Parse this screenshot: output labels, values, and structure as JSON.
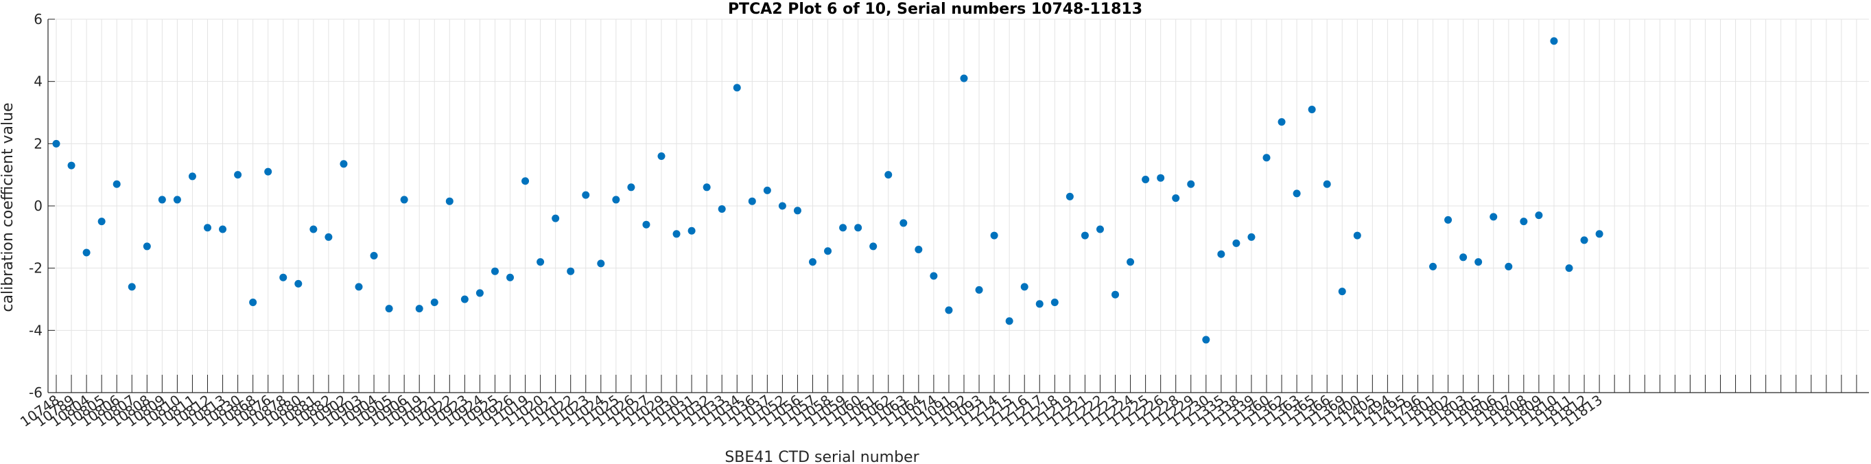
{
  "chart_data": {
    "type": "scatter",
    "title": "PTCA2 Plot 6 of 10, Serial numbers 10748-11813",
    "xlabel": "SBE41 CTD serial number",
    "ylabel": "calibration coefficient value",
    "ylim": [
      -6,
      6
    ],
    "yticks": [
      "-6",
      "-4",
      "-2",
      "0",
      "2",
      "4",
      "6"
    ],
    "grid": true,
    "marker_color": "#0072BD",
    "categories": [
      "10748",
      "10789",
      "10804",
      "10805",
      "10806",
      "10807",
      "10808",
      "10809",
      "10810",
      "10811",
      "10812",
      "10813",
      "10830",
      "10868",
      "10876",
      "10878",
      "10880",
      "10881",
      "10882",
      "10902",
      "10903",
      "10904",
      "10905",
      "10906",
      "10919",
      "10921",
      "10922",
      "10923",
      "10924",
      "10925",
      "10926",
      "11019",
      "11020",
      "11021",
      "11022",
      "11023",
      "11024",
      "11025",
      "11026",
      "11027",
      "11029",
      "11030",
      "11031",
      "11032",
      "11033",
      "11034",
      "11036",
      "11037",
      "11052",
      "11056",
      "11057",
      "11058",
      "11059",
      "11060",
      "11061",
      "11062",
      "11063",
      "11064",
      "11074",
      "11091",
      "11092",
      "11093",
      "11214",
      "11215",
      "11216",
      "11217",
      "11218",
      "11219",
      "11221",
      "11222",
      "11223",
      "11224",
      "11225",
      "11226",
      "11228",
      "11229",
      "11230",
      "11335",
      "11338",
      "11339",
      "11360",
      "11362",
      "11363",
      "11365",
      "11366",
      "11369",
      "11400",
      "11405",
      "11494",
      "11495",
      "11796",
      "11801",
      "11802",
      "11803",
      "11805",
      "11806",
      "11807",
      "11808",
      "11809",
      "11810",
      "11811",
      "11812",
      "11813"
    ],
    "x_extra_ticks": 19,
    "values": [
      2.0,
      1.3,
      -1.5,
      -0.5,
      0.7,
      -2.6,
      -1.3,
      0.2,
      0.2,
      0.95,
      -0.7,
      -0.75,
      1.0,
      -3.1,
      1.1,
      -2.3,
      -2.5,
      -0.75,
      -1.0,
      1.35,
      -2.6,
      -1.6,
      -3.3,
      0.2,
      -3.3,
      -3.1,
      0.15,
      -3.0,
      -2.8,
      -2.1,
      -2.3,
      0.8,
      -1.8,
      -0.4,
      -2.1,
      0.35,
      -1.85,
      0.2,
      0.6,
      -0.6,
      1.6,
      -0.9,
      -0.8,
      0.6,
      -0.1,
      3.8,
      0.15,
      0.5,
      0.0,
      -0.15,
      -1.8,
      -1.45,
      -0.7,
      -0.7,
      -1.3,
      1.0,
      -0.55,
      -1.4,
      -2.25,
      -3.35,
      4.1,
      -2.7,
      -0.95,
      -3.7,
      -2.6,
      -3.15,
      -3.1,
      0.3,
      -0.95,
      -0.75,
      -2.85,
      -1.8,
      0.85,
      0.9,
      0.25,
      0.7,
      -4.3,
      -1.55,
      -1.2,
      -1.0,
      1.55,
      2.7,
      0.4,
      3.1,
      0.7,
      -2.75,
      -0.95,
      null,
      null,
      null,
      null,
      -1.95,
      -0.45,
      -1.65,
      -1.8,
      -0.35,
      -1.95,
      -0.5,
      -0.3,
      5.3,
      -2.0,
      -1.1,
      -0.9
    ]
  }
}
